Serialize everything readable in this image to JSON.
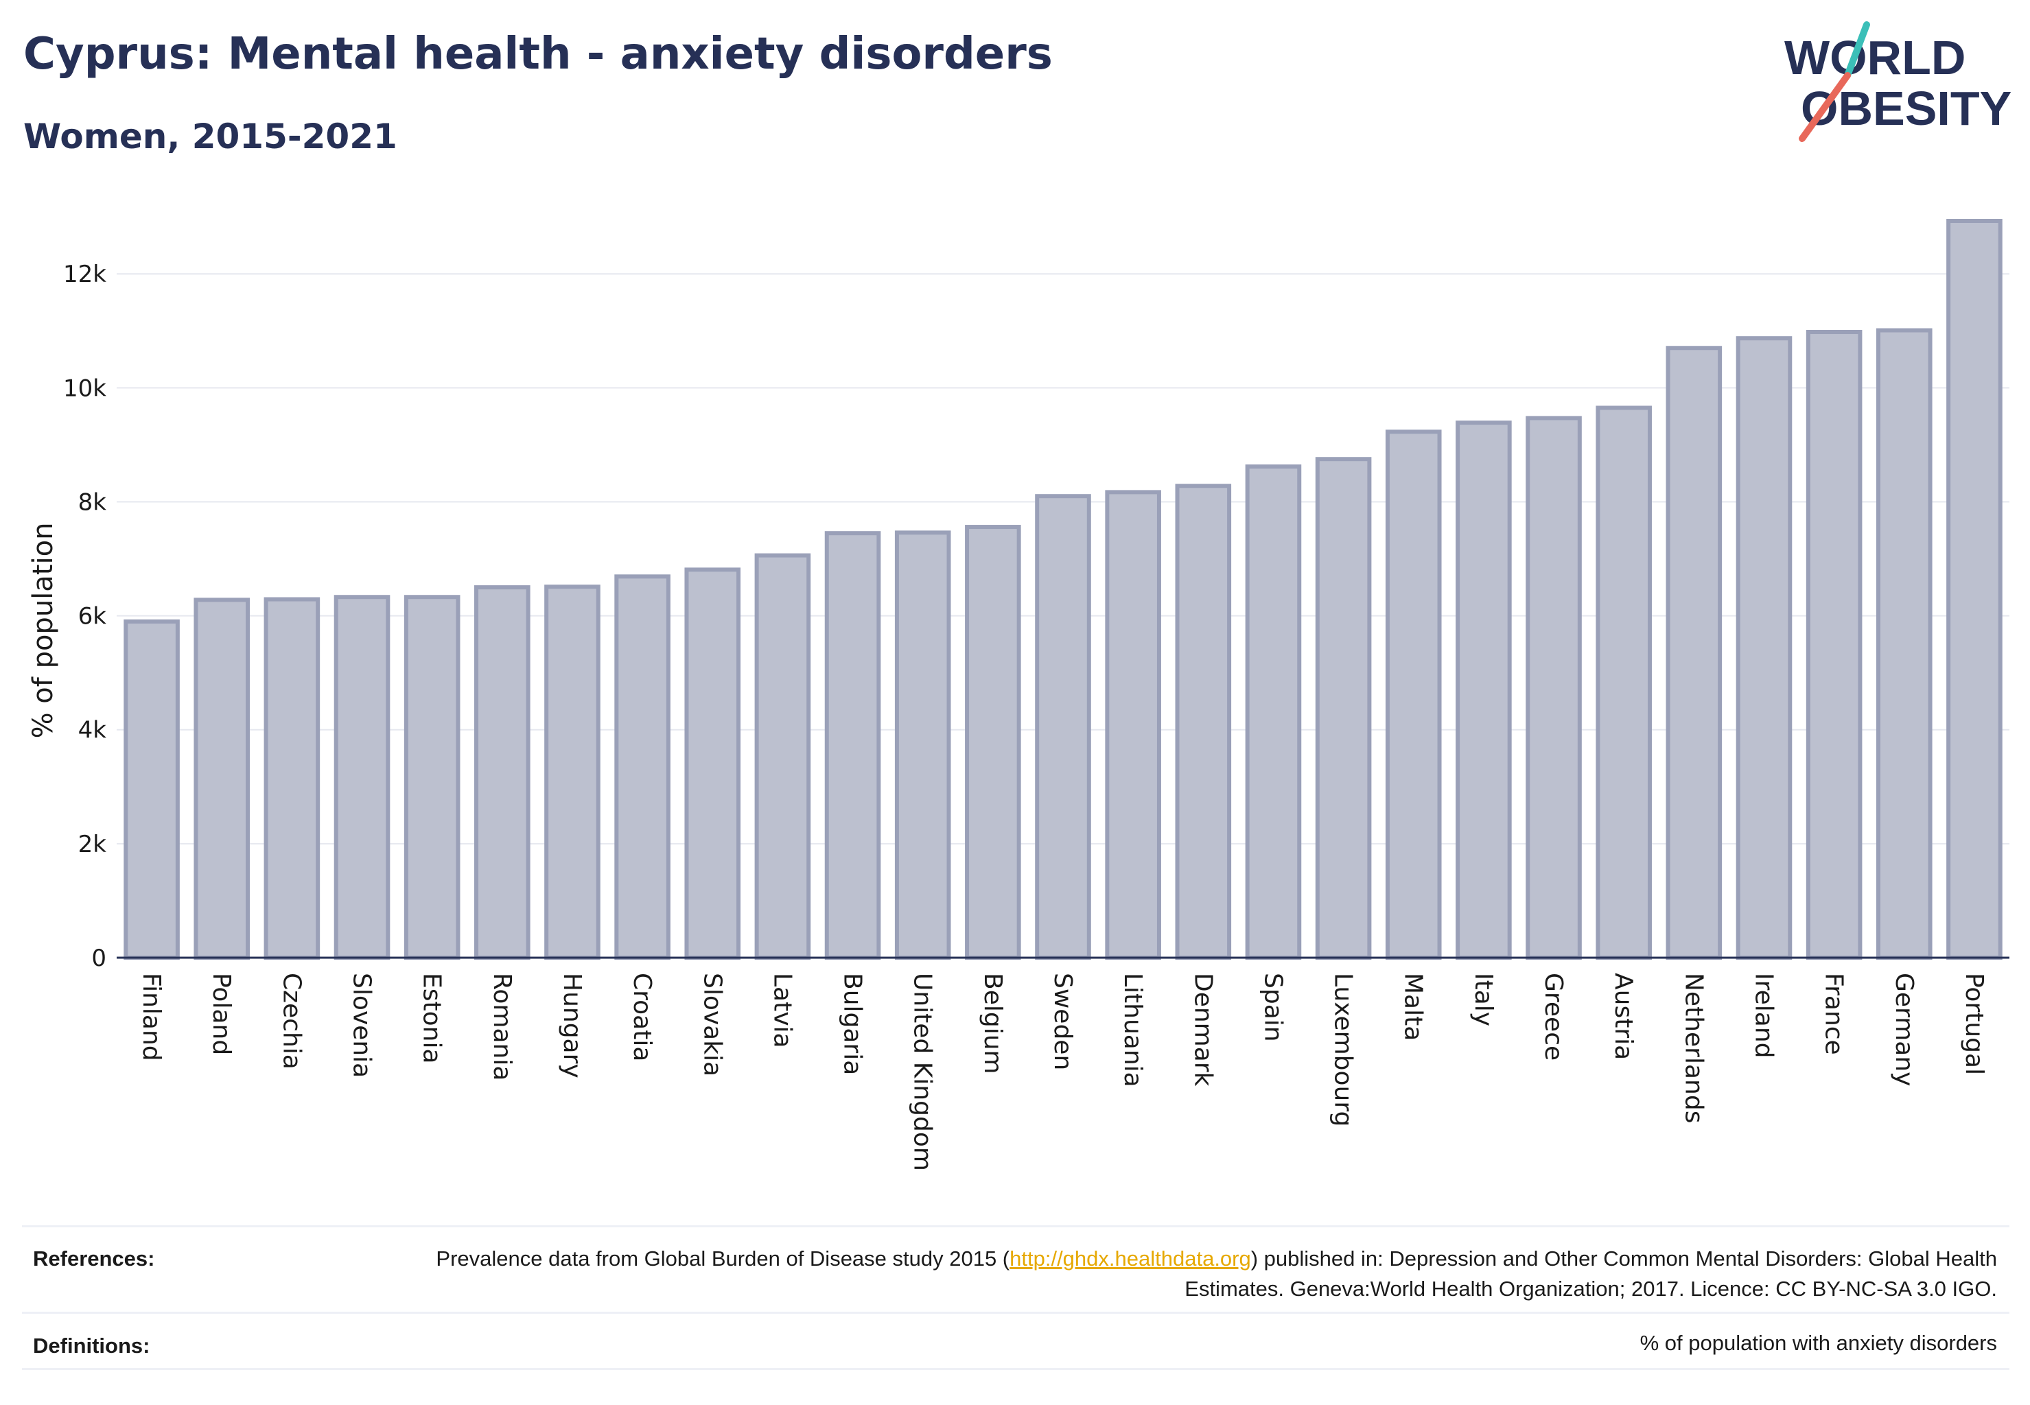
{
  "header": {
    "title": "Cyprus: Mental health - anxiety disorders",
    "subtitle": "Women, 2015-2021"
  },
  "logo": {
    "line1": "WORLD",
    "line2": "OBESITY",
    "text_color": "#263056",
    "slash_colors": [
      "#3bbfb8",
      "#e8685a"
    ]
  },
  "chart_data": {
    "type": "bar",
    "ylabel": "% of population",
    "xlabel": "",
    "ylim": [
      0,
      13000
    ],
    "yticks": [
      0,
      2000,
      4000,
      6000,
      8000,
      10000,
      12000
    ],
    "ytick_labels": [
      "0",
      "2k",
      "4k",
      "6k",
      "8k",
      "10k",
      "12k"
    ],
    "grid": true,
    "bar_color": "#bcc0cf",
    "bar_edge_color": "#9aa0b8",
    "categories": [
      "Finland",
      "Poland",
      "Czechia",
      "Slovenia",
      "Estonia",
      "Romania",
      "Hungary",
      "Croatia",
      "Slovakia",
      "Latvia",
      "Bulgaria",
      "United Kingdom",
      "Belgium",
      "Sweden",
      "Lithuania",
      "Denmark",
      "Spain",
      "Luxembourg",
      "Malta",
      "Italy",
      "Greece",
      "Austria",
      "Netherlands",
      "Ireland",
      "France",
      "Germany",
      "Portugal"
    ],
    "values": [
      5900,
      6280,
      6290,
      6330,
      6330,
      6500,
      6510,
      6690,
      6810,
      7060,
      7450,
      7460,
      7560,
      8100,
      8170,
      8280,
      8620,
      8750,
      9230,
      9390,
      9470,
      9650,
      10700,
      10870,
      10980,
      11010,
      12930
    ]
  },
  "footer": {
    "references_label": "References:",
    "references_text_before": "Prevalence data from Global Burden of Disease study 2015 (",
    "references_link": "http://ghdx.healthdata.org",
    "references_text_after": ") published in: Depression and Other Common Mental Disorders: Global Health Estimates. Geneva:World Health Organization; 2017. Licence: CC BY-NC-SA 3.0 IGO.",
    "definitions_label": "Definitions:",
    "definitions_text": "% of population with anxiety disorders"
  }
}
